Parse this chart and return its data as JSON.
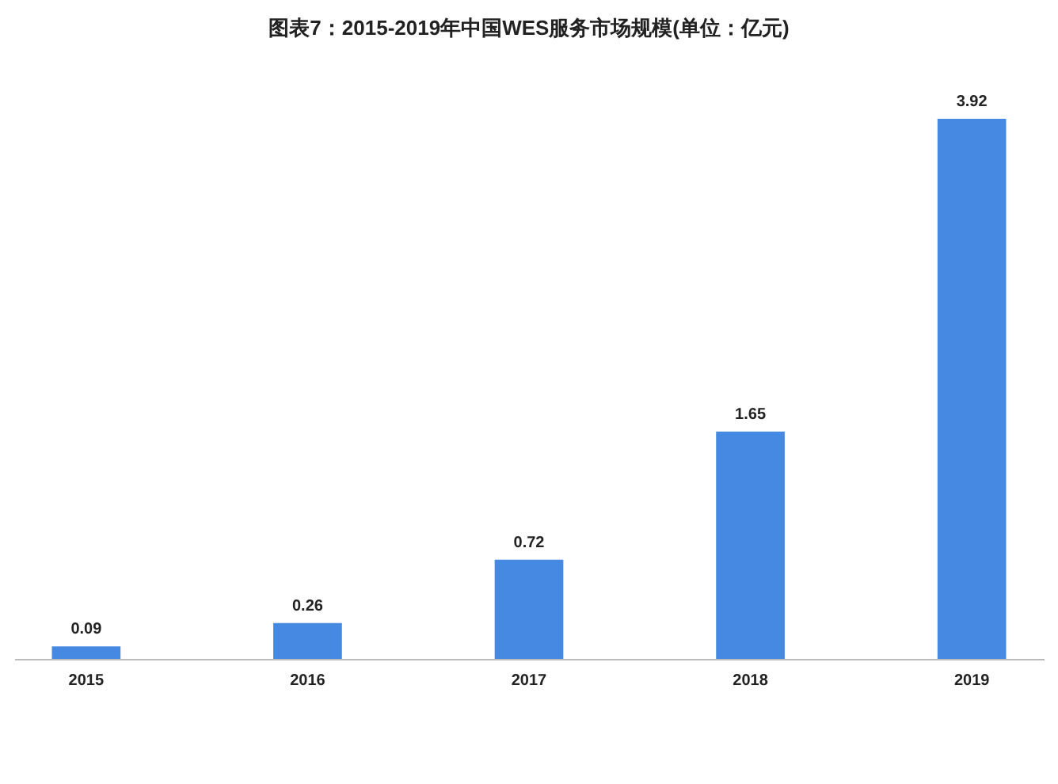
{
  "chart_data": {
    "type": "bar",
    "title": "图表7：2015-2019年中国WES服务市场规模(单位：亿元)",
    "categories": [
      "2015",
      "2016",
      "2017",
      "2018",
      "2019"
    ],
    "values": [
      0.09,
      0.26,
      0.72,
      1.65,
      3.92
    ],
    "color": "#4589e3",
    "data_labels": true,
    "grid": false
  }
}
